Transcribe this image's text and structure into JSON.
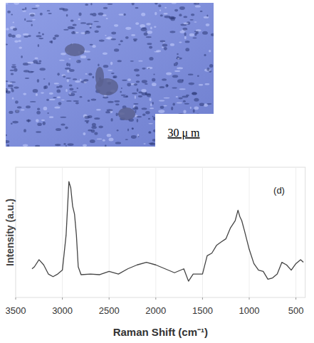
{
  "image": {
    "scale_bar": "30 μ m"
  },
  "chart_data": {
    "type": "line",
    "title": "(d)",
    "x_label": "Raman Shift (cm⁻¹)",
    "y_label": "Intensity (a.u.)",
    "x": [
      3325,
      3300,
      3250,
      3200,
      3150,
      3100,
      3050,
      3000,
      2960,
      2930,
      2910,
      2890,
      2870,
      2850,
      2830,
      2800,
      2700,
      2600,
      2500,
      2400,
      2300,
      2200,
      2100,
      2000,
      1900,
      1800,
      1700,
      1650,
      1600,
      1500,
      1450,
      1400,
      1350,
      1300,
      1250,
      1200,
      1150,
      1120,
      1100,
      1080,
      1050,
      1000,
      950,
      900,
      850,
      800,
      750,
      700,
      650,
      600,
      550,
      500,
      450,
      420
    ],
    "values": [
      22,
      23.5,
      29,
      25,
      18,
      16,
      18,
      21,
      48,
      89,
      84,
      70,
      64,
      48,
      23.5,
      17.5,
      18,
      17.5,
      20,
      18,
      22,
      25,
      27,
      25,
      22,
      19,
      22,
      12.5,
      18,
      18,
      32,
      34,
      40,
      42.6,
      45,
      53.5,
      59,
      67,
      62,
      59,
      51,
      37,
      26,
      21,
      20,
      14,
      15,
      18,
      27,
      25,
      21,
      26,
      29,
      27
    ],
    "color": "#444444",
    "xlim": [
      3500,
      400
    ],
    "ylim": [
      0,
      100
    ],
    "xticks": [
      3500,
      3000,
      2500,
      2000,
      1500,
      1000,
      500
    ],
    "yticks": [],
    "grid": true,
    "tick_labels": "x"
  }
}
